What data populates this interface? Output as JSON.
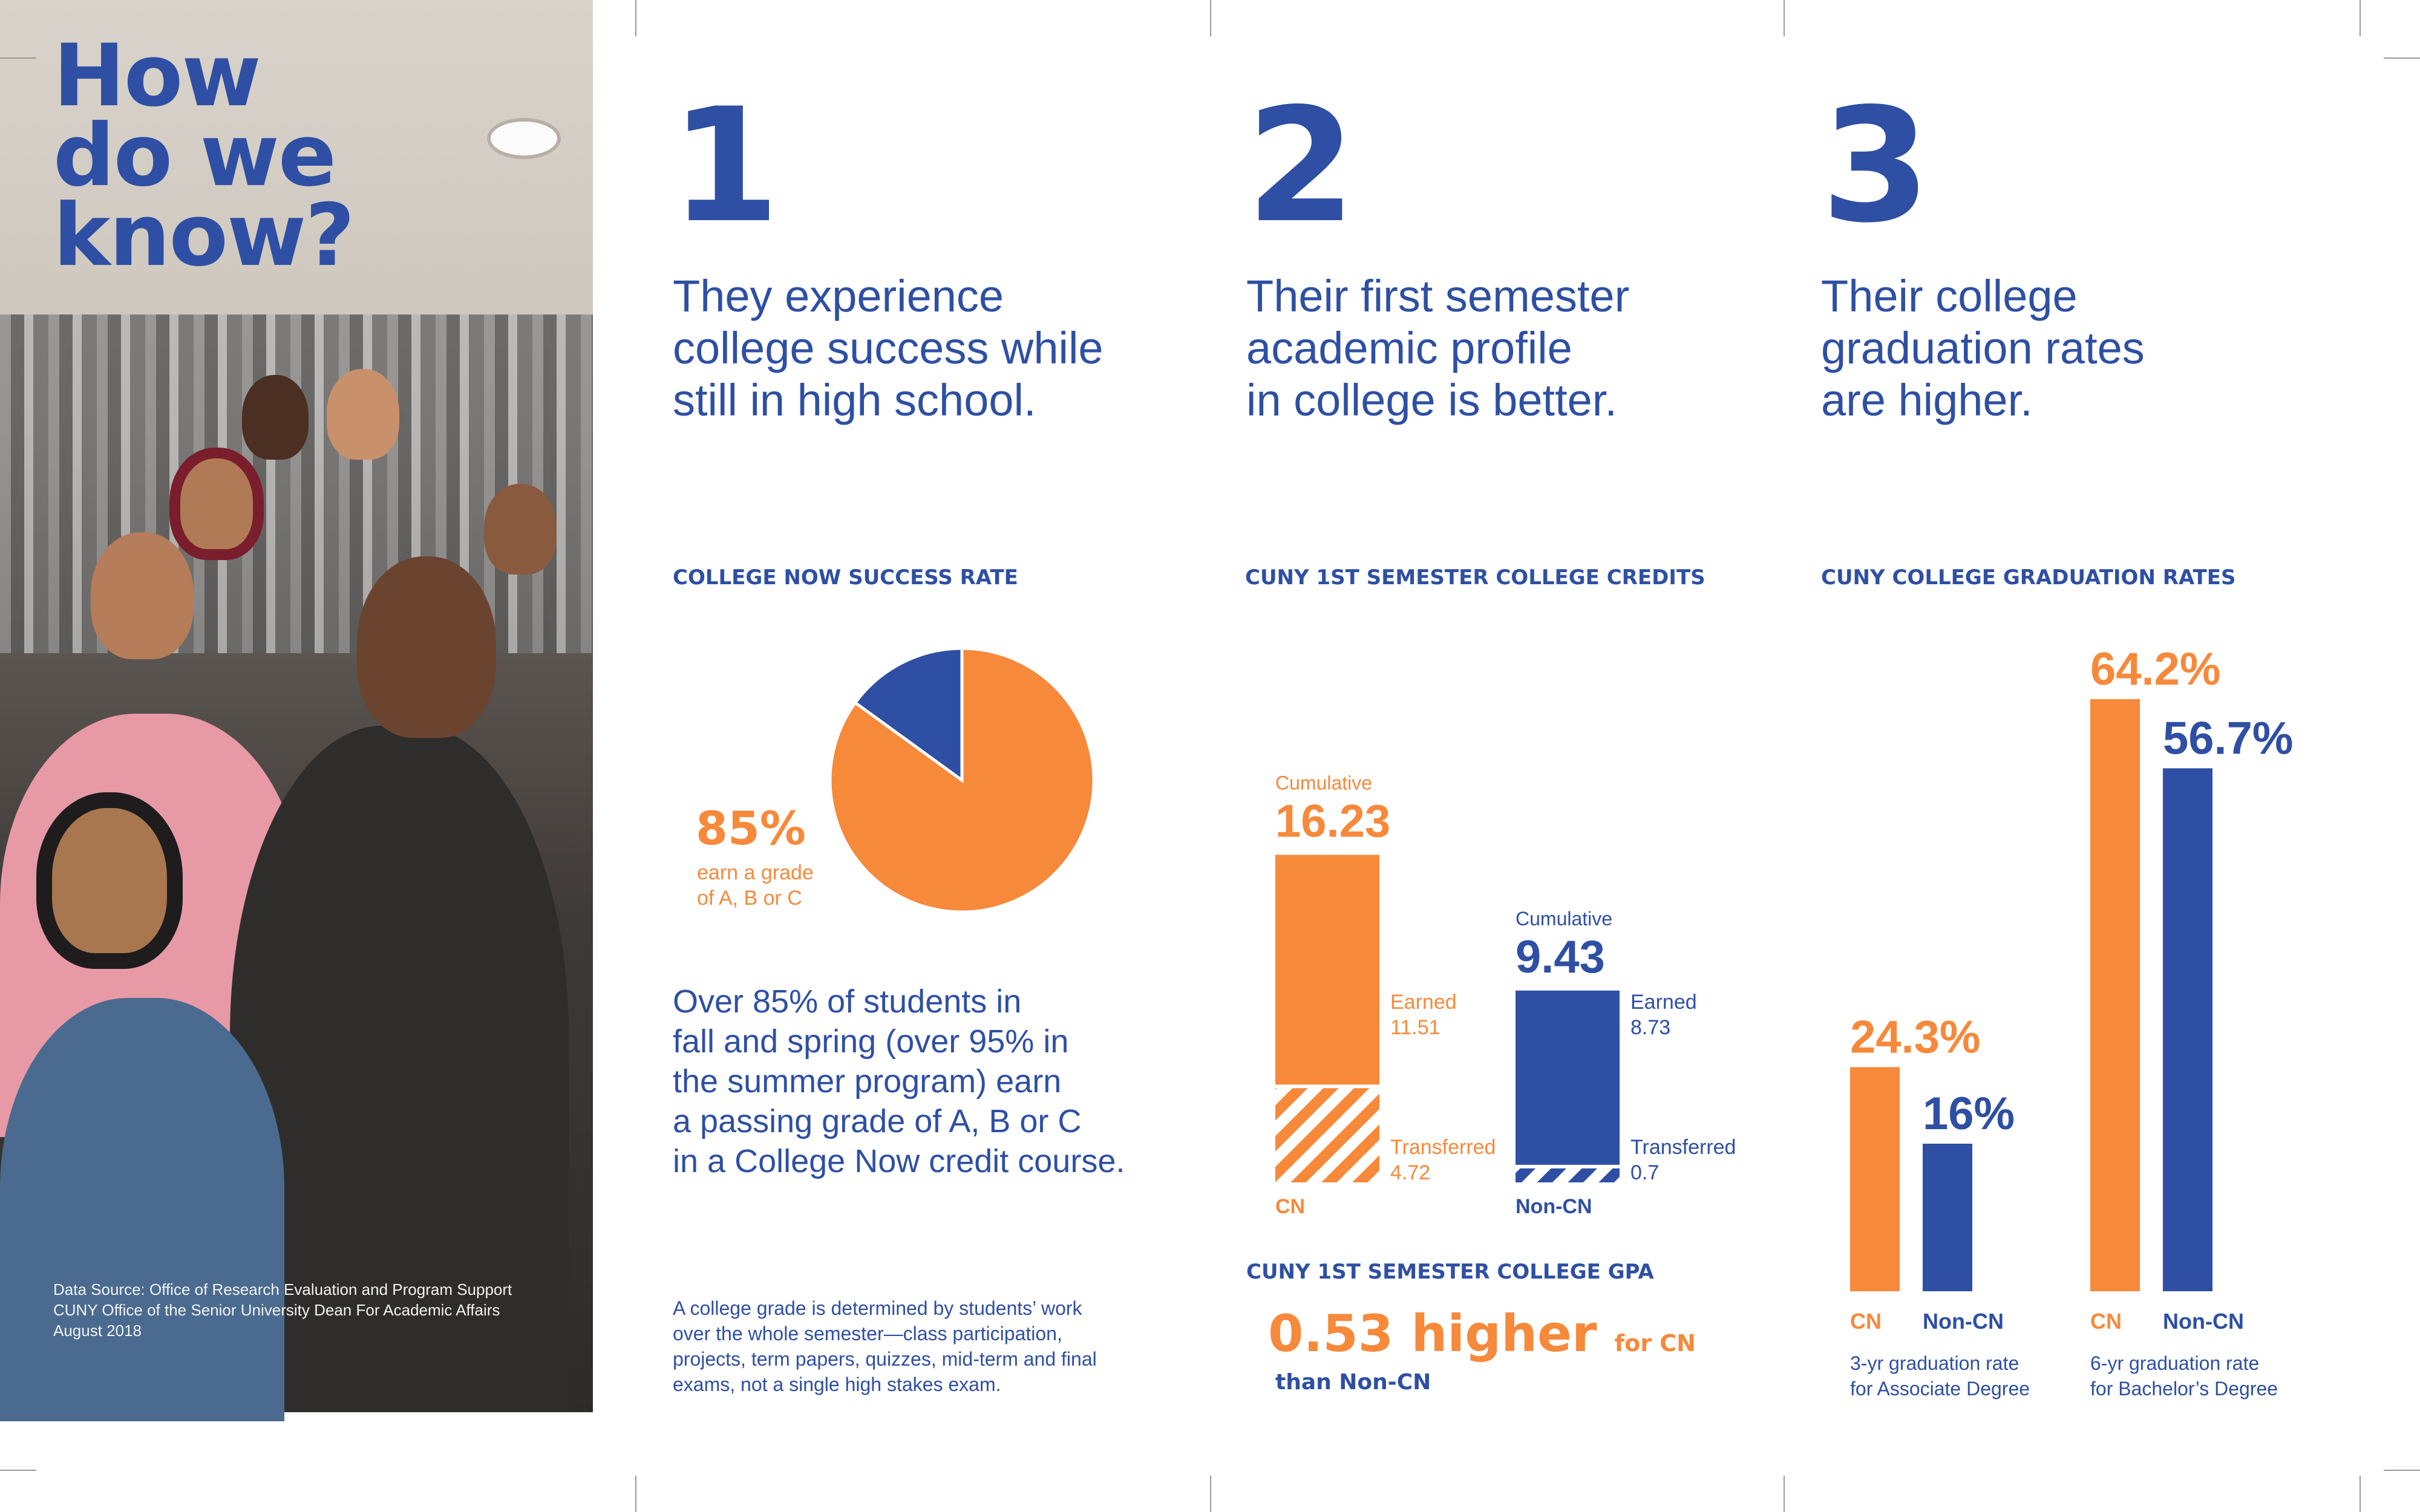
{
  "palette": {
    "orange": "#f7893b",
    "blue": "#2e4fa3"
  },
  "hero": {
    "line1": "How",
    "line2": "do we",
    "line3": "know?"
  },
  "source": {
    "line1": "Data Source: Office of Research Evaluation and Program Support",
    "line2": "CUNY Office of the Senior University Dean For Academic Affairs",
    "line3": "August 2018"
  },
  "col1": {
    "number": "1",
    "headline": [
      "They experience",
      "college success while",
      "still in high school."
    ],
    "section_title": "COLLEGE NOW SUCCESS RATE",
    "pie_pct": "85%",
    "pie_caption": [
      "earn a grade",
      "of A, B or C"
    ],
    "body": [
      "Over 85% of students in",
      "fall and spring (over 95% in",
      "the summer program) earn",
      "a passing grade of A, B or C",
      "in a College Now credit course."
    ],
    "note": [
      "A college grade is determined by students’ work",
      "over the whole semester—class participation,",
      "projects, term papers, quizzes, mid-term and final",
      "exams, not a single high stakes exam."
    ]
  },
  "col2": {
    "number": "2",
    "headline": [
      "Their first semester",
      "academic profile",
      "in college is better."
    ],
    "section_title": "CUNY 1ST SEMESTER COLLEGE CREDITS",
    "gpa_title": "CUNY 1ST SEMESTER COLLEGE GPA",
    "gpa_big": "0.53 higher",
    "gpa_for": "for CN",
    "gpa_than": "than Non-CN"
  },
  "col3": {
    "number": "3",
    "headline": [
      "Their college",
      "graduation rates",
      "are higher."
    ],
    "section_title": "CUNY COLLEGE GRADUATION RATES"
  },
  "chart_data": [
    {
      "type": "pie",
      "title": "COLLEGE NOW SUCCESS RATE",
      "slices": [
        {
          "label": "earn a grade of A, B or C",
          "value": 85,
          "color": "#f7893b"
        },
        {
          "label": "",
          "value": 15,
          "color": "#2e4fa3"
        }
      ]
    },
    {
      "type": "bar",
      "stacked": true,
      "title": "CUNY 1ST SEMESTER COLLEGE CREDITS",
      "categories": [
        "CN",
        "Non-CN"
      ],
      "cumulative_label": "Cumulative",
      "cumulative_values": [
        "16.23",
        "9.43"
      ],
      "series": [
        {
          "name": "Earned",
          "values": [
            11.51,
            8.73
          ],
          "value_labels": [
            "11.51",
            "8.73"
          ]
        },
        {
          "name": "Transferred",
          "values": [
            4.72,
            0.7
          ],
          "value_labels": [
            "4.72",
            "0.7"
          ]
        }
      ],
      "colors": [
        "#f7893b",
        "#2e4fa3"
      ]
    },
    {
      "type": "bar",
      "title": "CUNY COLLEGE GRADUATION RATES",
      "groups": [
        {
          "caption": [
            "3-yr graduation rate",
            "for Associate Degree"
          ],
          "bars": [
            {
              "category": "CN",
              "value": 24.3,
              "label": "24.3%",
              "color": "#f7893b"
            },
            {
              "category": "Non-CN",
              "value": 16,
              "label": "16%",
              "color": "#2e4fa3"
            }
          ]
        },
        {
          "caption": [
            "6-yr graduation rate",
            "for Bachelor’s Degree"
          ],
          "bars": [
            {
              "category": "CN",
              "value": 64.2,
              "label": "64.2%",
              "color": "#f7893b"
            },
            {
              "category": "Non-CN",
              "value": 56.7,
              "label": "56.7%",
              "color": "#2e4fa3"
            }
          ]
        }
      ]
    }
  ]
}
